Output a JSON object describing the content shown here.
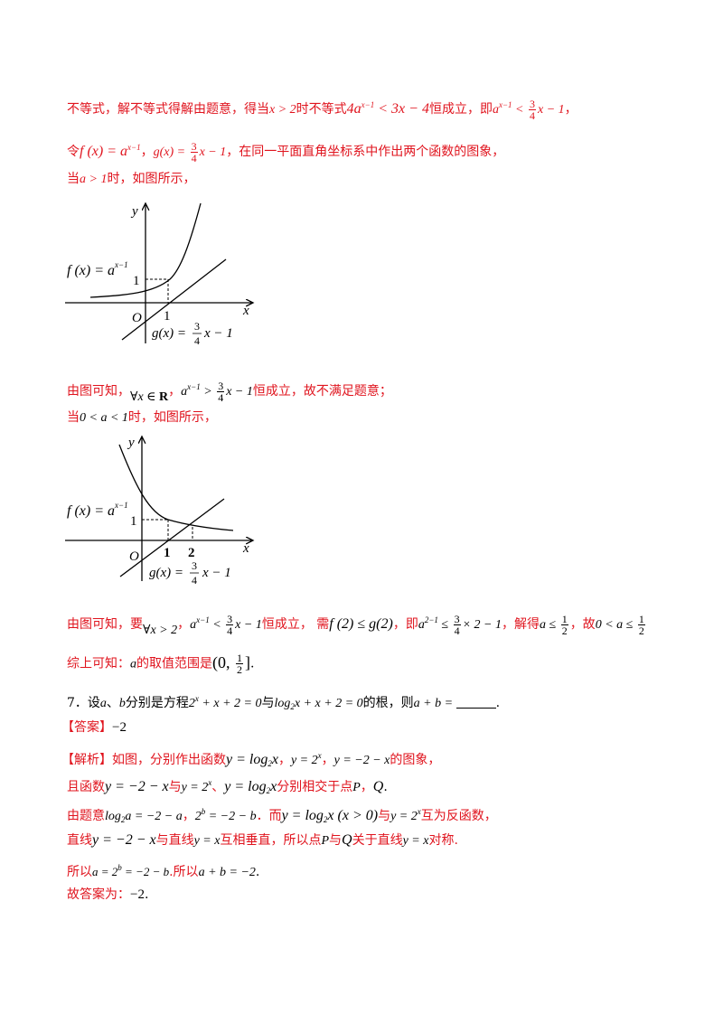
{
  "line1": {
    "t1": "不等式，解不等式得解由题意，得当",
    "m1": "x > 2",
    "t2": "时不等式",
    "m2a": "4a",
    "m2sup": "x−1",
    "m2b": " < 3x − 4",
    "t3": "恒成立，即",
    "m3a": "a",
    "m3sup": "x−1",
    "m3b": " < ",
    "f_num": "3",
    "f_den": "4",
    "m3c": "x − 1",
    "t4": "，"
  },
  "line2": {
    "t1": "令",
    "fx": "f (x) = a",
    "fxsup": "x−1",
    "t2": "，",
    "gx": "g(x) = ",
    "f_num": "3",
    "f_den": "4",
    "gx2": "x − 1",
    "t3": "，在同一平面直角坐标系中作出两个函数的图象，"
  },
  "line3": {
    "t1": "当",
    "m": "a > 1",
    "t2": "时，如图所示，"
  },
  "graph1": {
    "ylabel": "y",
    "xlabel": "x",
    "origin": "O",
    "tick_x": "1",
    "tick_y": "1",
    "f_label": "f (x) = a",
    "f_sup": "x−1",
    "g_label": "g(x) = ",
    "g_num": "3",
    "g_den": "4",
    "g_tail": "x − 1"
  },
  "line4": {
    "t1": "由图可知，",
    "m1": "∀x ∈ ",
    "m1b": "R",
    "t2": "，",
    "m2a": "a",
    "m2sup": "x−1",
    "m2b": " > ",
    "f_num": "3",
    "f_den": "4",
    "m2c": "x − 1",
    "t3": "恒成立，故不满足题意；"
  },
  "line5": {
    "t1": "当",
    "m": "0 < a < 1",
    "t2": "时，如图所示，"
  },
  "graph2": {
    "ylabel": "y",
    "xlabel": "x",
    "origin": "O",
    "tick_x1": "1",
    "tick_x2": "2",
    "tick_y": "1",
    "f_label": "f (x) = a",
    "f_sup": "x−1",
    "g_label": "g(x) = ",
    "g_num": "3",
    "g_den": "4",
    "g_tail": "x − 1"
  },
  "line6": {
    "t1": "由图可知，要",
    "m1": "∀x > 2",
    "t2": "，",
    "m2a": "a",
    "m2sup": "x−1",
    "m2b": " < ",
    "f_num": "3",
    "f_den": "4",
    "m2c": "x − 1",
    "t3": "恒成立，  需",
    "m3": "f (2) ≤ g(2)",
    "t4": "，即",
    "m4a": "a",
    "m4sup": "2−1",
    "m4b": " ≤ ",
    "f2_num": "3",
    "f2_den": "4",
    "m4c": "× 2 − 1",
    "t5": "，解得",
    "m5": "a ≤ ",
    "f3_num": "1",
    "f3_den": "2",
    "t6": "，故",
    "m6": "0 < a ≤ ",
    "f4_num": "1",
    "f4_den": "2"
  },
  "line7": {
    "t1": "综上可知：",
    "m1": "a",
    "t2": "的取值范围是",
    "i1": "(0, ",
    "f_num": "1",
    "f_den": "2",
    "i2": "]",
    "t3": "."
  },
  "q7": {
    "t1": "7．设",
    "a": "a",
    "t2": "、",
    "b": "b",
    "t3": "分别是方程",
    "e1": "2",
    "e1sup": "x",
    "e1b": " + x + 2 = 0",
    "t4": "与",
    "e2": "log",
    "e2sub": "2",
    "e2b": "x + x + 2 = 0",
    "t5": "的根，则",
    "e3": "a + b = ",
    "t6": "."
  },
  "answer": {
    "label": "【答案】",
    "value": "−2"
  },
  "analysis": {
    "label": "【解析】",
    "t1": "如图，分别作出函数",
    "e1": "y = log",
    "e1sub": "2",
    "e1b": "x",
    "t2": "，",
    "e2": "y = 2",
    "e2sup": "x",
    "t3": "，",
    "e3": "y = −2 − x",
    "t4": "的图象，"
  },
  "line_a2": {
    "t1": "且函数",
    "e1": "y = −2 − x",
    "t2": "与",
    "e2": "y = 2",
    "e2sup": "x",
    "t3": "、",
    "e3": "y = log",
    "e3sub": "2",
    "e3b": "x",
    "t4": "分别相交于点",
    "p": "P",
    "t5": "，",
    "q": "Q",
    "t6": "."
  },
  "line_a3": {
    "t1": "由题意",
    "e1": "log",
    "e1sub": "2",
    "e1b": "a = −2 − a",
    "t2": "，",
    "e2": "2",
    "e2sup": "b",
    "e2b": " = −2 − b",
    "t3": "．而",
    "e3": "y = log",
    "e3sub": "2",
    "e3b": "x (x > 0)",
    "t4": "与",
    "e4": "y = 2",
    "e4sup": "x",
    "t5": "互为反函数，"
  },
  "line_a4": {
    "t1": "直线",
    "e1": "y = −2 − x",
    "t2": "与直线",
    "e2": "y = x",
    "t3": "互相垂直，所以点",
    "p": "P",
    "t4": "与",
    "q": "Q",
    "t5": "关于直线",
    "e3": "y = x",
    "t6": "对称."
  },
  "line_a5": {
    "t1": "所以",
    "e1": "a = 2",
    "e1sup": "b",
    "e1b": " = −2 − b",
    "t2": ".所以",
    "e2": "a + b = −2",
    "t3": "."
  },
  "line_a6": {
    "t1": "故答案为：",
    "e1": "−2",
    "t2": "."
  },
  "colors": {
    "red": "#e0141e",
    "black": "#000000"
  }
}
